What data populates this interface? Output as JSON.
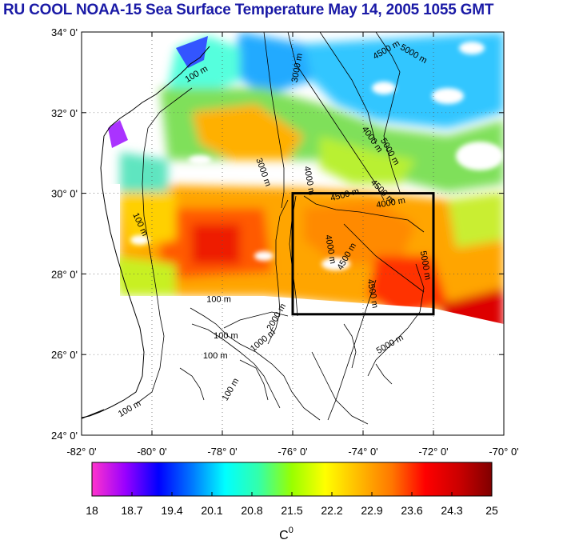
{
  "title": "RU COOL  NOAA-15 Sea Surface Temperature May 14, 2005 1055 GMT",
  "map": {
    "lon_range": [
      -82,
      -70
    ],
    "lat_range": [
      24,
      34
    ],
    "lat_ticks": [
      {
        "value": 34,
        "label": "34° 0'"
      },
      {
        "value": 32,
        "label": "32° 0'"
      },
      {
        "value": 30,
        "label": "30° 0'"
      },
      {
        "value": 28,
        "label": "28° 0'"
      },
      {
        "value": 26,
        "label": "26° 0'"
      },
      {
        "value": 24,
        "label": "24° 0'"
      }
    ],
    "lon_ticks": [
      {
        "value": -82,
        "label": "-82° 0'"
      },
      {
        "value": -80,
        "label": "-80° 0'"
      },
      {
        "value": -78,
        "label": "-78° 0'"
      },
      {
        "value": -76,
        "label": "-76° 0'"
      },
      {
        "value": -74,
        "label": "-74° 0'"
      },
      {
        "value": -72,
        "label": "-72° 0'"
      },
      {
        "value": -70,
        "label": "-70° 0'"
      }
    ],
    "grid": "dotted",
    "study_box": {
      "lon_min": -76,
      "lon_max": -72,
      "lat_min": 27,
      "lat_max": 30
    },
    "contour_labels": [
      {
        "text": "100 m",
        "lon": -78.7,
        "lat": 32.9,
        "angle": -30
      },
      {
        "text": "100 m",
        "lon": -80.4,
        "lat": 29.2,
        "angle": 65
      },
      {
        "text": "100 m",
        "lon": -78.1,
        "lat": 27.3,
        "angle": 0
      },
      {
        "text": "100 m",
        "lon": -77.9,
        "lat": 26.4,
        "angle": 0
      },
      {
        "text": "100 m",
        "lon": -78.2,
        "lat": 25.9,
        "angle": 0
      },
      {
        "text": "100 m",
        "lon": -77.7,
        "lat": 25.1,
        "angle": -60
      },
      {
        "text": "100 m",
        "lon": -80.6,
        "lat": 24.6,
        "angle": -30
      },
      {
        "text": "1000 m",
        "lon": -76.8,
        "lat": 26.3,
        "angle": -40
      },
      {
        "text": "2000 m",
        "lon": -76.4,
        "lat": 26.9,
        "angle": -60
      },
      {
        "text": "3000 m",
        "lon": -75.8,
        "lat": 33.1,
        "angle": -80
      },
      {
        "text": "3000 m",
        "lon": -76.9,
        "lat": 30.5,
        "angle": 70
      },
      {
        "text": "4000 m",
        "lon": -75.6,
        "lat": 30.3,
        "angle": 80
      },
      {
        "text": "4000 m",
        "lon": -73.8,
        "lat": 31.3,
        "angle": 55
      },
      {
        "text": "4000 m",
        "lon": -73.2,
        "lat": 29.7,
        "angle": -10
      },
      {
        "text": "4000 m",
        "lon": -75.0,
        "lat": 28.6,
        "angle": 80
      },
      {
        "text": "4500 m",
        "lon": -73.3,
        "lat": 33.5,
        "angle": -30
      },
      {
        "text": "4500 m",
        "lon": -73.5,
        "lat": 30.0,
        "angle": 45
      },
      {
        "text": "4500 m",
        "lon": -74.5,
        "lat": 29.9,
        "angle": -15
      },
      {
        "text": "4500 m",
        "lon": -74.4,
        "lat": 28.4,
        "angle": -60
      },
      {
        "text": "4500 m",
        "lon": -73.8,
        "lat": 27.5,
        "angle": 80
      },
      {
        "text": "5000 m",
        "lon": -72.6,
        "lat": 33.4,
        "angle": 30
      },
      {
        "text": "5000 m",
        "lon": -73.3,
        "lat": 31.0,
        "angle": 60
      },
      {
        "text": "5000 m",
        "lon": -72.3,
        "lat": 28.2,
        "angle": 80
      },
      {
        "text": "5000 m",
        "lon": -73.2,
        "lat": 26.2,
        "angle": -30
      }
    ]
  },
  "colorbar": {
    "ticks": [
      "18",
      "18.7",
      "19.4",
      "20.1",
      "20.8",
      "21.5",
      "22.2",
      "22.9",
      "23.6",
      "24.3",
      "25"
    ],
    "min": 18,
    "max": 25,
    "unit_label": "C",
    "unit_superscript": "0",
    "stops": [
      "#ff33cc",
      "#9900ff",
      "#0000ff",
      "#0077ff",
      "#00ffff",
      "#33ffaa",
      "#99ff00",
      "#ffff00",
      "#ffbb00",
      "#ff7700",
      "#ff0000",
      "#cc0000",
      "#800000"
    ]
  },
  "colors": {
    "title": "#1a1aa6",
    "land_outline": "#000000",
    "box": "#000000"
  }
}
